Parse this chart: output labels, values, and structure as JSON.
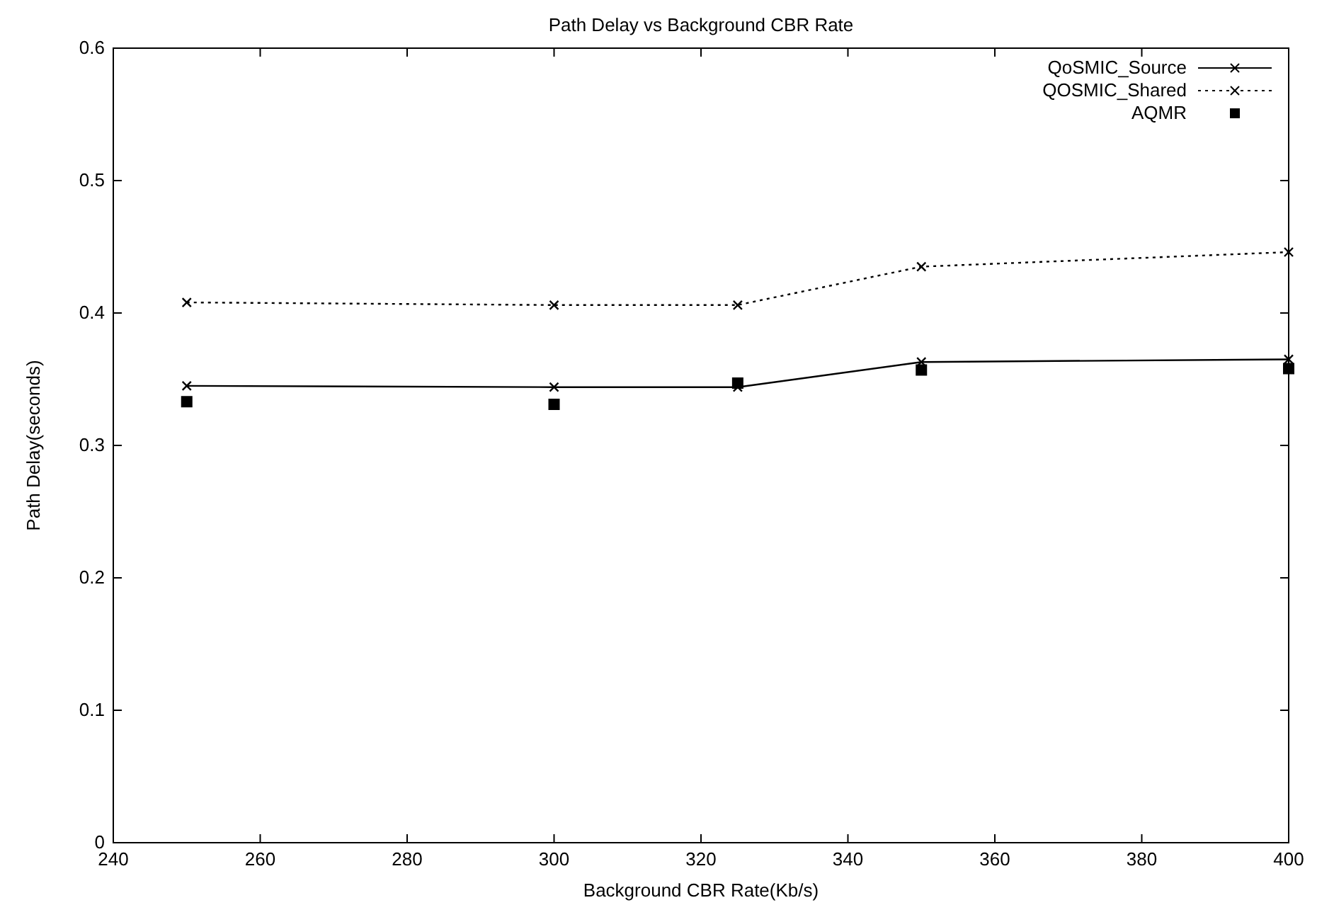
{
  "chart_data": {
    "type": "line",
    "title": "Path Delay vs  Background CBR Rate",
    "xlabel": "Background CBR Rate(Kb/s)",
    "ylabel": "Path Delay(seconds)",
    "x": [
      250,
      300,
      325,
      350,
      400
    ],
    "series": [
      {
        "name": "QoSMIC_Source",
        "color": "#000000",
        "values": [
          0.345,
          0.344,
          0.344,
          0.363,
          0.365
        ],
        "marker": "cross",
        "line_style": "solid"
      },
      {
        "name": "QOSMIC_Shared",
        "color": "#000000",
        "values": [
          0.408,
          0.406,
          0.406,
          0.435,
          0.446
        ],
        "marker": "cross",
        "line_style": "dotted"
      },
      {
        "name": "AQMR",
        "type": "scatter",
        "color": "#000000",
        "values": [
          0.333,
          0.331,
          0.347,
          0.357,
          0.358
        ],
        "marker": "square"
      }
    ],
    "xlim": [
      240,
      400
    ],
    "xticks": [
      240,
      260,
      280,
      300,
      320,
      340,
      360,
      380,
      400
    ],
    "ylim": [
      0,
      0.6
    ],
    "yticks": [
      0,
      0.1,
      0.2,
      0.3,
      0.4,
      0.5,
      0.6
    ],
    "grid": false,
    "legend": "top right"
  }
}
